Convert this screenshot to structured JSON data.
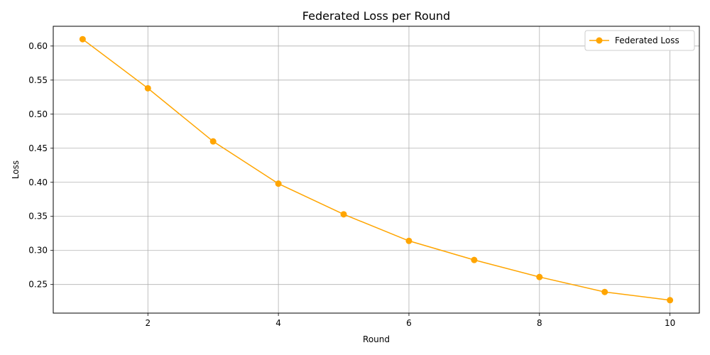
{
  "chart_data": {
    "type": "line",
    "title": "Federated Loss per Round",
    "xlabel": "Round",
    "ylabel": "Loss",
    "x": [
      1,
      2,
      3,
      4,
      5,
      6,
      7,
      8,
      9,
      10
    ],
    "series": [
      {
        "name": "Federated Loss",
        "color": "#ffa500",
        "marker": "circle",
        "values": [
          0.61,
          0.538,
          0.46,
          0.398,
          0.353,
          0.314,
          0.286,
          0.261,
          0.239,
          0.227
        ]
      }
    ],
    "xlim": [
      0.55,
      10.45
    ],
    "ylim": [
      0.208,
      0.629
    ],
    "xticks": [
      2,
      4,
      6,
      8,
      10
    ],
    "xtick_labels": [
      "2",
      "4",
      "6",
      "8",
      "10"
    ],
    "yticks": [
      0.25,
      0.3,
      0.35,
      0.4,
      0.45,
      0.5,
      0.55,
      0.6
    ],
    "ytick_labels": [
      "0.25",
      "0.30",
      "0.35",
      "0.40",
      "0.45",
      "0.50",
      "0.55",
      "0.60"
    ],
    "grid": true,
    "legend_position": "top-right"
  }
}
